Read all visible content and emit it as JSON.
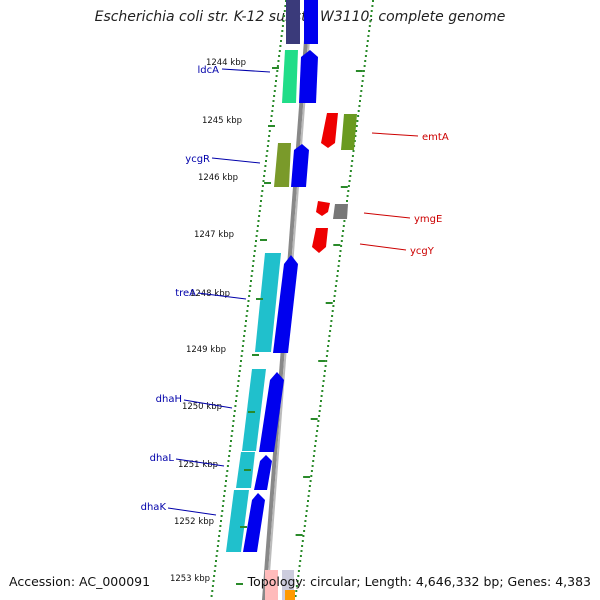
{
  "header": {
    "title": "Escherichia coli str. K-12 substr. W3110, complete genome"
  },
  "footer": {
    "accession": "Accession: AC_000091",
    "summary": "Topology: circular; Length: 4,646,332 bp; Genes: 4,383"
  },
  "colors": {
    "forward_label": "#0000aa",
    "reverse_label": "#cc0000",
    "cds_forward": "#0000ee",
    "cds_reverse": "#ee0000",
    "backbone": "#888888",
    "dots": "#2a8a2a"
  },
  "scale": {
    "ticks": [
      "1244 kbp",
      "1245 kbp",
      "1246 kbp",
      "1247 kbp",
      "1248 kbp",
      "1249 kbp",
      "1250 kbp",
      "1251 kbp",
      "1252 kbp",
      "1253 kbp"
    ]
  },
  "genes": {
    "forward": [
      {
        "name": "ldcA",
        "track_color": "#20dd88"
      },
      {
        "name": "ycgR",
        "track_color": "#7a9a2a"
      },
      {
        "name": "treA",
        "track_color": "#20c0cc"
      },
      {
        "name": "dhaH",
        "track_color": "#20c0cc"
      },
      {
        "name": "dhaL",
        "track_color": "#20c0cc"
      },
      {
        "name": "dhaK",
        "track_color": "#20c0cc"
      }
    ],
    "reverse": [
      {
        "name": "emtA",
        "track_color": "#6a9a20"
      },
      {
        "name": "ymgE",
        "track_color": "#777777"
      },
      {
        "name": "ycgY",
        "track_color": ""
      }
    ]
  }
}
